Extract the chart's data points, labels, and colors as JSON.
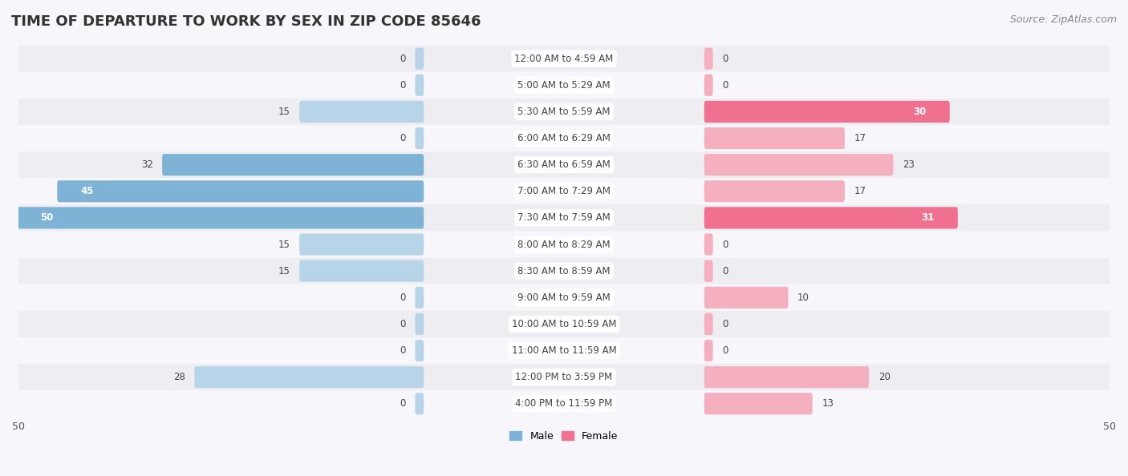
{
  "title": "TIME OF DEPARTURE TO WORK BY SEX IN ZIP CODE 85646",
  "source": "Source: ZipAtlas.com",
  "categories": [
    "12:00 AM to 4:59 AM",
    "5:00 AM to 5:29 AM",
    "5:30 AM to 5:59 AM",
    "6:00 AM to 6:29 AM",
    "6:30 AM to 6:59 AM",
    "7:00 AM to 7:29 AM",
    "7:30 AM to 7:59 AM",
    "8:00 AM to 8:29 AM",
    "8:30 AM to 8:59 AM",
    "9:00 AM to 9:59 AM",
    "10:00 AM to 10:59 AM",
    "11:00 AM to 11:59 AM",
    "12:00 PM to 3:59 PM",
    "4:00 PM to 11:59 PM"
  ],
  "male": [
    0,
    0,
    15,
    0,
    32,
    45,
    50,
    15,
    15,
    0,
    0,
    0,
    28,
    0
  ],
  "female": [
    0,
    0,
    30,
    17,
    23,
    17,
    31,
    0,
    0,
    10,
    0,
    0,
    20,
    13
  ],
  "male_color": "#7fb3d6",
  "female_color": "#f07090",
  "male_color_light": "#b8d4e8",
  "female_color_light": "#f5b0c0",
  "male_label": "Male",
  "female_label": "Female",
  "max_val": 50,
  "row_bg_alt": "#ededf2",
  "row_bg_norm": "#f7f7fb",
  "title_fontsize": 13,
  "source_fontsize": 9,
  "cat_fontsize": 8.5,
  "val_fontsize": 8.5,
  "legend_fontsize": 9
}
